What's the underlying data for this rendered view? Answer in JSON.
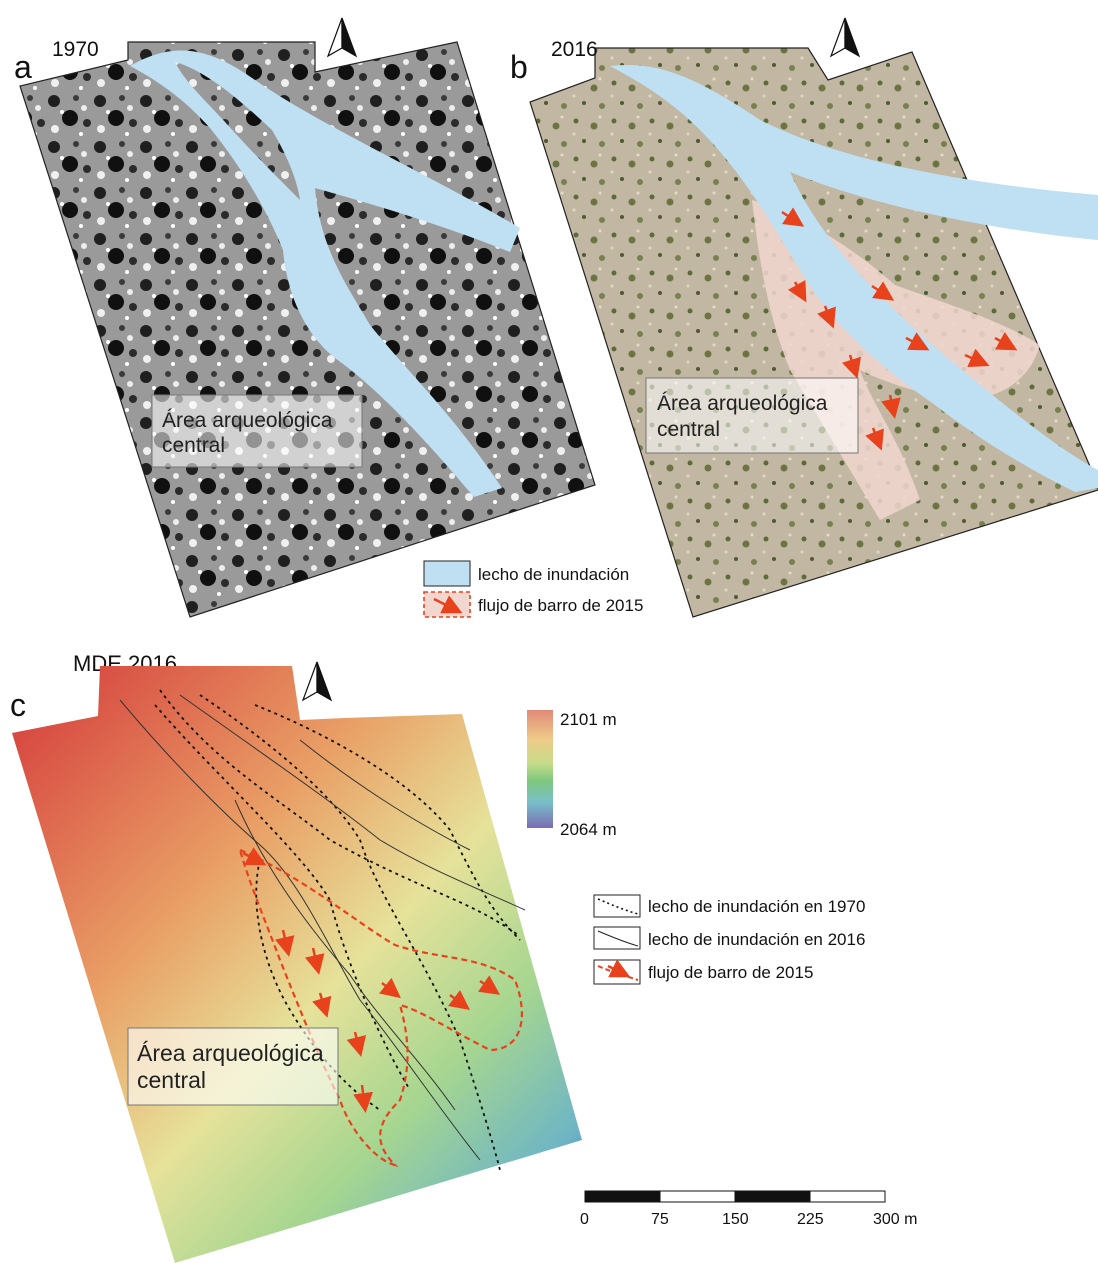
{
  "panels": [
    {
      "letter": "a",
      "year": "1970"
    },
    {
      "letter": "b",
      "year": "2016"
    }
  ],
  "panel_c": {
    "letter": "c",
    "title": "MDE 2016"
  },
  "area_label": {
    "line1": "Área arqueológica",
    "line2": "central"
  },
  "legend_top": {
    "floodplain": "lecho de inundación",
    "mudflow": "flujo de barro de 2015"
  },
  "legend_bottom": {
    "floodplain_1970": "lecho de inundación en 1970",
    "floodplain_2016": "lecho de inundación en 2016",
    "mudflow": "flujo de barro de 2015"
  },
  "elevation_scale": {
    "max": "2101 m",
    "min": "2064 m"
  },
  "scale_bar": {
    "ticks": [
      "0",
      "75",
      "150",
      "225",
      "300 m"
    ]
  },
  "colors": {
    "floodplain": "#bfe0f2",
    "mudflow": "#e8421d",
    "elev_high": "#d7473b",
    "elev_mid": "#9fd07a",
    "elev_low": "#2f6db0"
  },
  "icons": [
    "north-arrow-icon"
  ]
}
